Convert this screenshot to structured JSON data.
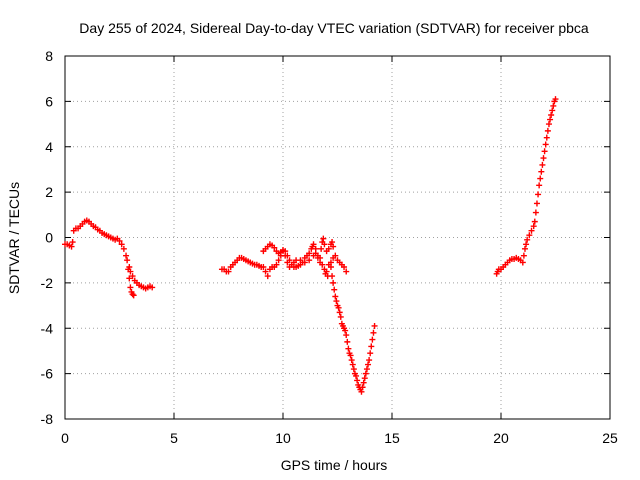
{
  "chart_data": {
    "type": "scatter",
    "title": "Day 255 of 2024, Sidereal Day-to-day VTEC variation (SDTVAR) for receiver pbca",
    "xlabel": "GPS time / hours",
    "ylabel": "SDTVAR / TECUs",
    "xlim": [
      0,
      25
    ],
    "ylim": [
      -8,
      8
    ],
    "xticks": [
      0,
      5,
      10,
      15,
      20,
      25
    ],
    "yticks": [
      -8,
      -6,
      -4,
      -2,
      0,
      2,
      4,
      6,
      8
    ],
    "grid": true,
    "marker": "+",
    "color": "#ff0000",
    "series": [
      {
        "points": [
          [
            0.0,
            -0.3
          ],
          [
            0.1,
            -0.3
          ],
          [
            0.2,
            -0.35
          ],
          [
            0.3,
            -0.4
          ],
          [
            0.35,
            -0.2
          ],
          [
            0.4,
            0.3
          ],
          [
            0.5,
            0.4
          ],
          [
            0.6,
            0.4
          ],
          [
            0.7,
            0.5
          ],
          [
            0.8,
            0.6
          ],
          [
            0.9,
            0.7
          ],
          [
            1.0,
            0.75
          ],
          [
            1.1,
            0.7
          ],
          [
            1.2,
            0.6
          ],
          [
            1.3,
            0.5
          ],
          [
            1.4,
            0.45
          ],
          [
            1.5,
            0.35
          ],
          [
            1.6,
            0.3
          ],
          [
            1.7,
            0.2
          ],
          [
            1.8,
            0.15
          ],
          [
            1.9,
            0.1
          ],
          [
            2.0,
            0.05
          ],
          [
            2.1,
            0.0
          ],
          [
            2.2,
            -0.05
          ],
          [
            2.3,
            -0.1
          ],
          [
            2.4,
            -0.05
          ],
          [
            2.5,
            -0.15
          ],
          [
            2.6,
            -0.3
          ],
          [
            2.7,
            -0.5
          ],
          [
            2.8,
            -0.8
          ],
          [
            2.85,
            -1.0
          ],
          [
            2.9,
            -1.4
          ],
          [
            2.95,
            -1.8
          ],
          [
            3.0,
            -2.2
          ],
          [
            3.05,
            -2.4
          ],
          [
            3.1,
            -2.5
          ],
          [
            3.15,
            -2.55
          ],
          [
            2.95,
            -1.3
          ],
          [
            3.0,
            -1.5
          ],
          [
            3.1,
            -1.7
          ],
          [
            3.2,
            -1.9
          ],
          [
            3.3,
            -2.0
          ],
          [
            3.4,
            -2.1
          ],
          [
            3.5,
            -2.15
          ],
          [
            3.6,
            -2.2
          ],
          [
            3.7,
            -2.25
          ],
          [
            3.8,
            -2.2
          ],
          [
            3.9,
            -2.15
          ],
          [
            4.0,
            -2.2
          ]
        ]
      },
      {
        "points": [
          [
            7.2,
            -1.4
          ],
          [
            7.3,
            -1.4
          ],
          [
            7.4,
            -1.5
          ],
          [
            7.5,
            -1.5
          ],
          [
            7.6,
            -1.3
          ],
          [
            7.7,
            -1.2
          ],
          [
            7.8,
            -1.1
          ],
          [
            7.9,
            -1.0
          ],
          [
            8.0,
            -0.9
          ],
          [
            8.1,
            -0.9
          ],
          [
            8.2,
            -0.95
          ],
          [
            8.3,
            -1.0
          ],
          [
            8.4,
            -1.05
          ],
          [
            8.5,
            -1.1
          ],
          [
            8.6,
            -1.15
          ],
          [
            8.7,
            -1.2
          ],
          [
            8.8,
            -1.2
          ],
          [
            8.9,
            -1.25
          ],
          [
            9.0,
            -1.3
          ],
          [
            9.1,
            -1.3
          ],
          [
            9.2,
            -1.5
          ],
          [
            9.3,
            -1.7
          ],
          [
            9.4,
            -1.4
          ],
          [
            9.5,
            -1.3
          ],
          [
            9.6,
            -1.3
          ],
          [
            9.7,
            -1.2
          ],
          [
            9.8,
            -1.0
          ],
          [
            9.9,
            -0.8
          ],
          [
            10.0,
            -0.6
          ],
          [
            9.1,
            -0.6
          ],
          [
            9.2,
            -0.5
          ],
          [
            9.3,
            -0.4
          ],
          [
            9.4,
            -0.3
          ],
          [
            9.5,
            -0.35
          ],
          [
            9.6,
            -0.45
          ],
          [
            9.7,
            -0.6
          ],
          [
            9.8,
            -0.7
          ],
          [
            9.9,
            -0.65
          ],
          [
            10.0,
            -0.55
          ],
          [
            10.1,
            -0.6
          ],
          [
            10.2,
            -0.8
          ],
          [
            10.3,
            -1.0
          ],
          [
            10.4,
            -1.2
          ],
          [
            10.5,
            -1.3
          ],
          [
            10.6,
            -1.3
          ],
          [
            10.7,
            -1.25
          ],
          [
            10.8,
            -1.2
          ],
          [
            10.9,
            -1.1
          ],
          [
            11.0,
            -0.9
          ],
          [
            11.1,
            -0.8
          ],
          [
            11.2,
            -0.7
          ],
          [
            11.3,
            -0.5
          ],
          [
            11.35,
            -0.4
          ],
          [
            11.4,
            -0.3
          ],
          [
            11.5,
            -0.5
          ],
          [
            11.6,
            -0.8
          ],
          [
            11.7,
            -0.9
          ],
          [
            11.75,
            -0.5
          ],
          [
            11.8,
            -0.2
          ],
          [
            11.85,
            -0.05
          ],
          [
            11.9,
            -0.3
          ],
          [
            12.0,
            -0.6
          ],
          [
            12.1,
            -0.5
          ],
          [
            12.2,
            -0.3
          ],
          [
            12.25,
            -0.2
          ],
          [
            12.3,
            -0.4
          ],
          [
            12.4,
            -0.8
          ],
          [
            12.5,
            -1.0
          ],
          [
            12.6,
            -1.1
          ],
          [
            12.7,
            -1.2
          ],
          [
            12.8,
            -1.3
          ],
          [
            12.9,
            -1.5
          ],
          [
            10.1,
            -0.8
          ],
          [
            10.2,
            -1.1
          ],
          [
            10.3,
            -1.3
          ],
          [
            10.5,
            -1.1
          ],
          [
            10.6,
            -1.0
          ],
          [
            10.8,
            -1.0
          ],
          [
            11.0,
            -1.1
          ],
          [
            11.2,
            -1.0
          ],
          [
            11.4,
            -0.8
          ],
          [
            11.5,
            -0.7
          ],
          [
            11.6,
            -0.9
          ],
          [
            11.7,
            -1.1
          ],
          [
            11.8,
            -1.2
          ],
          [
            11.9,
            -1.4
          ],
          [
            11.95,
            -1.6
          ],
          [
            12.0,
            -1.5
          ],
          [
            12.05,
            -1.7
          ],
          [
            12.1,
            -1.2
          ],
          [
            12.2,
            -1.1
          ],
          [
            12.3,
            -0.9
          ],
          [
            12.2,
            -1.3
          ],
          [
            12.25,
            -1.7
          ],
          [
            12.3,
            -2.0
          ],
          [
            12.35,
            -2.3
          ],
          [
            12.4,
            -2.6
          ],
          [
            12.45,
            -2.8
          ],
          [
            12.5,
            -3.0
          ],
          [
            12.55,
            -3.1
          ],
          [
            12.6,
            -3.3
          ],
          [
            12.65,
            -3.5
          ],
          [
            12.7,
            -3.8
          ],
          [
            12.75,
            -3.9
          ],
          [
            12.8,
            -4.0
          ],
          [
            12.85,
            -4.1
          ],
          [
            12.9,
            -4.3
          ],
          [
            12.95,
            -4.6
          ],
          [
            13.0,
            -4.9
          ],
          [
            13.05,
            -5.1
          ],
          [
            13.1,
            -5.2
          ],
          [
            13.15,
            -5.4
          ],
          [
            13.2,
            -5.6
          ],
          [
            13.25,
            -5.8
          ],
          [
            13.3,
            -6.0
          ],
          [
            13.35,
            -6.1
          ],
          [
            13.4,
            -6.3
          ],
          [
            13.45,
            -6.5
          ],
          [
            13.5,
            -6.6
          ],
          [
            13.55,
            -6.7
          ],
          [
            13.6,
            -6.8
          ],
          [
            13.65,
            -6.6
          ],
          [
            13.7,
            -6.4
          ],
          [
            13.75,
            -6.2
          ],
          [
            13.8,
            -6.0
          ],
          [
            13.85,
            -5.8
          ],
          [
            13.9,
            -5.6
          ],
          [
            13.95,
            -5.4
          ],
          [
            14.0,
            -5.1
          ],
          [
            14.05,
            -4.8
          ],
          [
            14.1,
            -4.5
          ],
          [
            14.15,
            -4.2
          ],
          [
            14.2,
            -3.9
          ]
        ]
      },
      {
        "points": [
          [
            19.8,
            -1.6
          ],
          [
            19.85,
            -1.5
          ],
          [
            19.9,
            -1.4
          ],
          [
            20.0,
            -1.4
          ],
          [
            20.1,
            -1.3
          ],
          [
            20.2,
            -1.2
          ],
          [
            20.3,
            -1.1
          ],
          [
            20.4,
            -1.0
          ],
          [
            20.5,
            -0.95
          ],
          [
            20.6,
            -0.95
          ],
          [
            20.7,
            -0.9
          ],
          [
            20.8,
            -0.95
          ],
          [
            20.9,
            -1.0
          ],
          [
            21.0,
            -1.1
          ],
          [
            21.05,
            -0.8
          ],
          [
            21.1,
            -0.5
          ],
          [
            21.15,
            -0.3
          ],
          [
            21.2,
            -0.1
          ],
          [
            21.3,
            0.1
          ],
          [
            21.4,
            0.3
          ],
          [
            21.5,
            0.5
          ],
          [
            21.55,
            0.7
          ],
          [
            21.6,
            1.1
          ],
          [
            21.65,
            1.5
          ],
          [
            21.7,
            1.9
          ],
          [
            21.75,
            2.3
          ],
          [
            21.8,
            2.6
          ],
          [
            21.85,
            2.9
          ],
          [
            21.9,
            3.2
          ],
          [
            21.95,
            3.5
          ],
          [
            22.0,
            3.8
          ],
          [
            22.05,
            4.1
          ],
          [
            22.1,
            4.4
          ],
          [
            22.15,
            4.7
          ],
          [
            22.2,
            5.0
          ],
          [
            22.25,
            5.2
          ],
          [
            22.3,
            5.4
          ],
          [
            22.35,
            5.6
          ],
          [
            22.4,
            5.8
          ],
          [
            22.45,
            6.0
          ],
          [
            22.5,
            6.1
          ]
        ]
      }
    ]
  }
}
